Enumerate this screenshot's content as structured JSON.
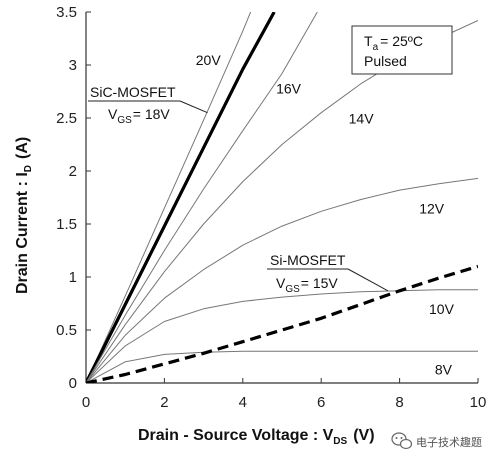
{
  "chart_data": {
    "type": "line",
    "title": "",
    "xlabel": "Drain - Source Voltage : V",
    "xlabel_sub": "DS",
    "xlabel_tail": "(V)",
    "ylabel": "Drain Current : I",
    "ylabel_sub": "D",
    "ylabel_tail": "(A)",
    "xlim": [
      0,
      10
    ],
    "ylim": [
      0,
      3.5
    ],
    "x_ticks": [
      0,
      2,
      4,
      6,
      8,
      10
    ],
    "y_ticks": [
      0,
      0.5,
      1,
      1.5,
      2,
      2.5,
      3,
      3.5
    ],
    "grid": false,
    "conditions": {
      "temp_prefix": "T",
      "temp_sub": "a",
      "temp_value": "= 25ºC",
      "mode": "Pulsed"
    },
    "series": [
      {
        "name": "20V",
        "device": "SiC",
        "style": "thin",
        "x": [
          0,
          1,
          2,
          3,
          4,
          4.2
        ],
        "y": [
          0,
          0.82,
          1.65,
          2.48,
          3.32,
          3.5
        ]
      },
      {
        "name": "SiC-MOSFET VGS= 18V",
        "device": "SiC",
        "style": "bold",
        "x": [
          0,
          1,
          2,
          3,
          4,
          4.8
        ],
        "y": [
          0,
          0.74,
          1.48,
          2.22,
          2.96,
          3.5
        ]
      },
      {
        "name": "16V",
        "device": "SiC",
        "style": "thin",
        "x": [
          0,
          1,
          2,
          3,
          4,
          5,
          5.9
        ],
        "y": [
          0,
          0.64,
          1.25,
          1.83,
          2.38,
          2.92,
          3.5
        ]
      },
      {
        "name": "14V",
        "device": "SiC",
        "style": "thin",
        "x": [
          0,
          1,
          2,
          3,
          4,
          5,
          6,
          7,
          8,
          9,
          10
        ],
        "y": [
          0,
          0.55,
          1.05,
          1.5,
          1.9,
          2.25,
          2.55,
          2.82,
          3.05,
          3.25,
          3.42
        ]
      },
      {
        "name": "12V",
        "device": "SiC",
        "style": "thin",
        "x": [
          0,
          1,
          2,
          3,
          4,
          5,
          6,
          7,
          8,
          9,
          10
        ],
        "y": [
          0,
          0.45,
          0.8,
          1.07,
          1.3,
          1.48,
          1.62,
          1.73,
          1.82,
          1.88,
          1.93
        ]
      },
      {
        "name": "10V",
        "device": "SiC",
        "style": "thin",
        "x": [
          0,
          1,
          2,
          3,
          4,
          5,
          6,
          7,
          8,
          9,
          10
        ],
        "y": [
          0,
          0.35,
          0.58,
          0.7,
          0.77,
          0.81,
          0.84,
          0.86,
          0.87,
          0.88,
          0.88
        ]
      },
      {
        "name": "8V",
        "device": "SiC",
        "style": "thin",
        "x": [
          0,
          1,
          2,
          3,
          4,
          5,
          6,
          7,
          8,
          9,
          10
        ],
        "y": [
          0,
          0.2,
          0.27,
          0.29,
          0.3,
          0.3,
          0.3,
          0.3,
          0.3,
          0.3,
          0.3
        ]
      },
      {
        "name": "Si-MOSFET VGS= 15V",
        "device": "Si",
        "style": "dashed",
        "x": [
          0,
          1,
          2,
          3,
          4,
          5,
          6,
          7,
          8,
          9,
          10
        ],
        "y": [
          0,
          0.08,
          0.18,
          0.28,
          0.39,
          0.5,
          0.61,
          0.74,
          0.87,
          0.99,
          1.1
        ]
      }
    ],
    "curve_labels": [
      {
        "text": "20V",
        "x": 2.8,
        "y": 3.0
      },
      {
        "text": "16V",
        "x": 4.85,
        "y": 2.73
      },
      {
        "text": "14V",
        "x": 6.7,
        "y": 2.45
      },
      {
        "text": "12V",
        "x": 8.5,
        "y": 1.6
      },
      {
        "text": "10V",
        "x": 8.75,
        "y": 0.65
      },
      {
        "text": "8V",
        "x": 8.9,
        "y": 0.08
      }
    ],
    "callouts": [
      {
        "device_name": "SiC-MOSFET",
        "vgs_prefix": "V",
        "vgs_sub": "GS",
        "vgs_value": "= 18V",
        "anchor_x": 0.2,
        "anchor_y": 2.72,
        "target_x": 3.1,
        "target_y": 2.55
      },
      {
        "device_name": "Si-MOSFET",
        "vgs_prefix": "V",
        "vgs_sub": "GS",
        "vgs_value": "= 15V",
        "anchor_x": 4.6,
        "anchor_y": 1.14,
        "target_x": 7.7,
        "target_y": 0.87
      }
    ]
  },
  "watermark": {
    "icon": "wechat-icon",
    "text": "电子技术趣题"
  }
}
